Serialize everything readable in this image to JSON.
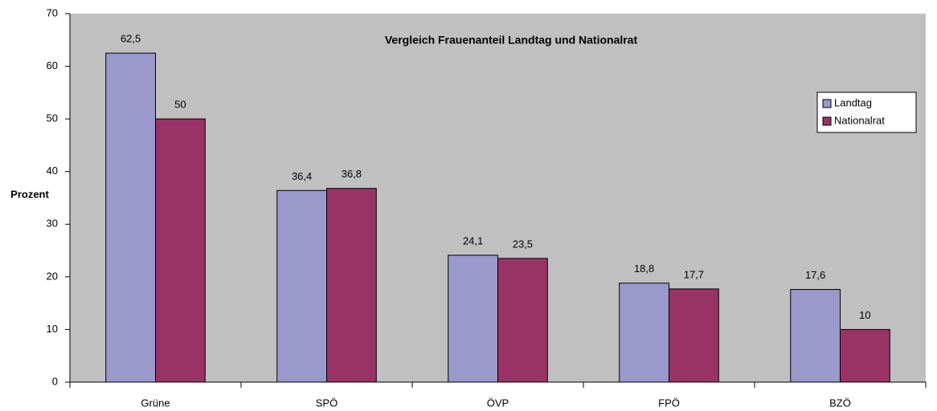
{
  "chart_data": {
    "type": "bar",
    "title": "Vergleich Frauenanteil Landtag und Nationalrat",
    "y_label": "Prozent",
    "categories": [
      "Grüne",
      "SPÖ",
      "ÖVP",
      "FPÖ",
      "BZÖ"
    ],
    "series": [
      {
        "name": "Landtag",
        "color": "#9999cc",
        "values": [
          62.5,
          36.4,
          24.1,
          18.8,
          17.6
        ],
        "value_labels": [
          "62,5",
          "36,4",
          "24,1",
          "18,8",
          "17,6"
        ]
      },
      {
        "name": "Nationalrat",
        "color": "#993366",
        "values": [
          50,
          36.8,
          23.5,
          17.7,
          10
        ],
        "value_labels": [
          "50",
          "36,8",
          "23,5",
          "17,7",
          "10"
        ]
      }
    ],
    "ylim": [
      0,
      70
    ],
    "yticks": [
      0,
      10,
      20,
      30,
      40,
      50,
      60,
      70
    ],
    "grid": false,
    "legend": "upper right",
    "background": "#c0c0c0"
  }
}
